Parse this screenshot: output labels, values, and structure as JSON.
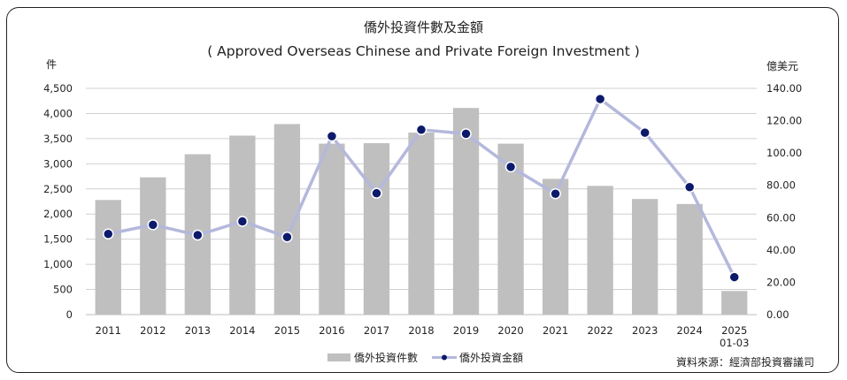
{
  "title": "僑外投資件數及金額",
  "subtitle": "( Approved Overseas Chinese and Private Foreign Investment )",
  "left_unit": "件",
  "right_unit": "億美元",
  "source": "資料來源：經濟部投資審議司",
  "colors": {
    "bar": "#bfbfbf",
    "line": "#b4b8dc",
    "marker": "#0d1a6b",
    "grid": "#d0d0d0"
  },
  "chart_data": {
    "type": "bar",
    "categories": [
      "2011",
      "2012",
      "2013",
      "2014",
      "2015",
      "2016",
      "2017",
      "2018",
      "2019",
      "2020",
      "2021",
      "2022",
      "2023",
      "2024",
      "2025\n01-03"
    ],
    "series": [
      {
        "name": "僑外投資件數",
        "type": "bar",
        "axis": "left",
        "values": [
          2280,
          2730,
          3190,
          3560,
          3790,
          3400,
          3410,
          3620,
          4110,
          3400,
          2700,
          2560,
          2300,
          2200,
          470
        ]
      },
      {
        "name": "僑外投資金額",
        "type": "line",
        "axis": "right",
        "values": [
          49.9,
          55.6,
          49.2,
          57.7,
          48.0,
          110.4,
          75.1,
          114.4,
          111.9,
          91.4,
          74.8,
          133.4,
          112.6,
          78.9,
          23.2
        ]
      }
    ],
    "y_left": {
      "ylim": [
        0,
        4500
      ],
      "ticks": [
        "0",
        "500",
        "1,000",
        "1,500",
        "2,000",
        "2,500",
        "3,000",
        "3,500",
        "4,000",
        "4,500"
      ]
    },
    "y_right": {
      "ylim": [
        0,
        140
      ],
      "ticks": [
        "0.00",
        "20.00",
        "40.00",
        "60.00",
        "80.00",
        "100.00",
        "120.00",
        "140.00"
      ]
    },
    "grid": true,
    "legend": "bottom"
  }
}
